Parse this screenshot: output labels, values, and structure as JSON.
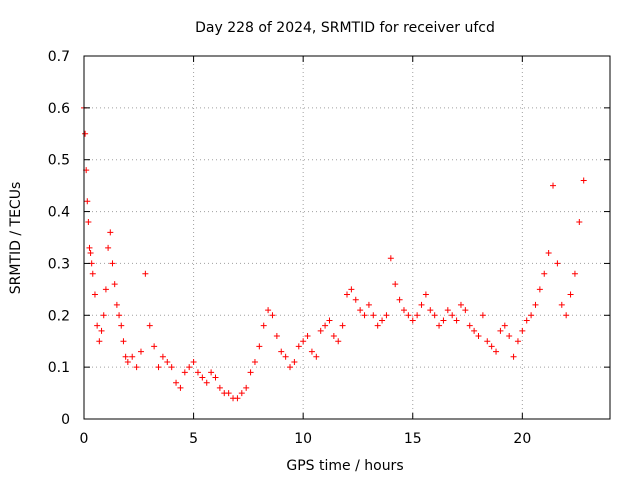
{
  "chart_data": {
    "type": "scatter",
    "title": "Day 228 of 2024, SRMTID for receiver ufcd",
    "xlabel": "GPS time / hours",
    "ylabel": "SRMTID / TECUs",
    "xlim": [
      0,
      24
    ],
    "ylim": [
      0,
      0.7
    ],
    "xticks": [
      0,
      5,
      10,
      15,
      20
    ],
    "xtick_labels": [
      "0",
      "5",
      "10",
      "15",
      "20"
    ],
    "yticks": [
      0,
      0.1,
      0.2,
      0.3,
      0.4,
      0.5,
      0.6,
      0.7
    ],
    "ytick_labels": [
      "0",
      "0.1",
      "0.2",
      "0.3",
      "0.4",
      "0.5",
      "0.6",
      "0.7"
    ],
    "grid": true,
    "marker": "plus",
    "series": [
      {
        "name": "SRMTID",
        "color": "#ff0000",
        "x": [
          0.0,
          0.05,
          0.1,
          0.15,
          0.2,
          0.25,
          0.3,
          0.35,
          0.4,
          0.5,
          0.6,
          0.7,
          0.8,
          0.9,
          1.0,
          1.1,
          1.2,
          1.3,
          1.4,
          1.5,
          1.6,
          1.7,
          1.8,
          1.9,
          2.0,
          2.2,
          2.4,
          2.6,
          2.8,
          3.0,
          3.2,
          3.4,
          3.6,
          3.8,
          4.0,
          4.2,
          4.4,
          4.6,
          4.8,
          5.0,
          5.2,
          5.4,
          5.6,
          5.8,
          6.0,
          6.2,
          6.4,
          6.6,
          6.8,
          7.0,
          7.2,
          7.4,
          7.6,
          7.8,
          8.0,
          8.2,
          8.4,
          8.6,
          8.8,
          9.0,
          9.2,
          9.4,
          9.6,
          9.8,
          10.0,
          10.2,
          10.4,
          10.6,
          10.8,
          11.0,
          11.2,
          11.4,
          11.6,
          11.8,
          12.0,
          12.2,
          12.4,
          12.6,
          12.8,
          13.0,
          13.2,
          13.4,
          13.6,
          13.8,
          14.0,
          14.2,
          14.4,
          14.6,
          14.8,
          15.0,
          15.2,
          15.4,
          15.6,
          15.8,
          16.0,
          16.2,
          16.4,
          16.6,
          16.8,
          17.0,
          17.2,
          17.4,
          17.6,
          17.8,
          18.0,
          18.2,
          18.4,
          18.6,
          18.8,
          19.0,
          19.2,
          19.4,
          19.6,
          19.8,
          20.0,
          20.2,
          20.4,
          20.6,
          20.8,
          21.0,
          21.2,
          21.4,
          21.6,
          21.8,
          22.0,
          22.2,
          22.4,
          22.6,
          22.8
        ],
        "y": [
          0.6,
          0.55,
          0.48,
          0.42,
          0.38,
          0.33,
          0.32,
          0.3,
          0.28,
          0.24,
          0.18,
          0.15,
          0.17,
          0.2,
          0.25,
          0.33,
          0.36,
          0.3,
          0.26,
          0.22,
          0.2,
          0.18,
          0.15,
          0.12,
          0.11,
          0.12,
          0.1,
          0.13,
          0.28,
          0.18,
          0.14,
          0.1,
          0.12,
          0.11,
          0.1,
          0.07,
          0.06,
          0.09,
          0.1,
          0.11,
          0.09,
          0.08,
          0.07,
          0.09,
          0.08,
          0.06,
          0.05,
          0.05,
          0.04,
          0.04,
          0.05,
          0.06,
          0.09,
          0.11,
          0.14,
          0.18,
          0.21,
          0.2,
          0.16,
          0.13,
          0.12,
          0.1,
          0.11,
          0.14,
          0.15,
          0.16,
          0.13,
          0.12,
          0.17,
          0.18,
          0.19,
          0.16,
          0.15,
          0.18,
          0.24,
          0.25,
          0.23,
          0.21,
          0.2,
          0.22,
          0.2,
          0.18,
          0.19,
          0.2,
          0.31,
          0.26,
          0.23,
          0.21,
          0.2,
          0.19,
          0.2,
          0.22,
          0.24,
          0.21,
          0.2,
          0.18,
          0.19,
          0.21,
          0.2,
          0.19,
          0.22,
          0.21,
          0.18,
          0.17,
          0.16,
          0.2,
          0.15,
          0.14,
          0.13,
          0.17,
          0.18,
          0.16,
          0.12,
          0.15,
          0.17,
          0.19,
          0.2,
          0.22,
          0.25,
          0.28,
          0.32,
          0.45,
          0.3,
          0.22,
          0.2,
          0.24,
          0.28,
          0.38,
          0.46
        ]
      }
    ]
  }
}
